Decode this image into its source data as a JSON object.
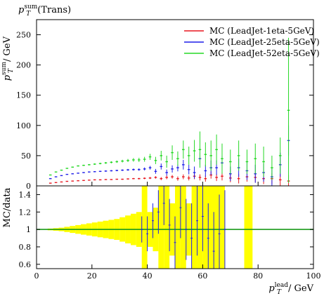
{
  "chart_data": [
    {
      "type": "scatter",
      "panel": "main",
      "title": "p_T^sum (Trans)",
      "ylabel": "p_T^sum / GeV",
      "xlim": [
        0,
        100
      ],
      "ylim": [
        0,
        275
      ],
      "yticks": [
        0,
        50,
        100,
        150,
        200,
        250
      ],
      "legend_position": "top-right",
      "x": [
        5,
        7,
        9,
        11,
        13,
        15,
        17,
        19,
        21,
        23,
        25,
        27,
        29,
        31,
        33,
        35,
        37,
        39,
        41,
        43,
        45,
        47,
        49,
        51,
        53,
        55,
        57,
        59,
        61,
        63,
        65,
        67,
        70,
        73,
        76,
        79,
        82,
        85,
        88,
        91
      ],
      "series": [
        {
          "name": "MC (LeadJet-1eta-5GeV)",
          "color": "#e8171f",
          "values": [
            4.5,
            5.5,
            6.5,
            7.5,
            8,
            8.5,
            9,
            9.5,
            10,
            10,
            10.5,
            10.5,
            11,
            11,
            11.5,
            12,
            12,
            12.5,
            13,
            14,
            12,
            14,
            15,
            12,
            15,
            13,
            16,
            14,
            12,
            18,
            14,
            16,
            13,
            12,
            15,
            14,
            12,
            12,
            10,
            8
          ],
          "errors": [
            0.3,
            0.3,
            0.3,
            0.3,
            0.3,
            0.4,
            0.4,
            0.4,
            0.5,
            0.5,
            0.6,
            0.6,
            0.7,
            0.8,
            0.9,
            1,
            1.2,
            1.4,
            1.6,
            2,
            2.5,
            3,
            3,
            3.5,
            4,
            4,
            5,
            5,
            5,
            6,
            6,
            7,
            7,
            8,
            8,
            8,
            9,
            9,
            10,
            10
          ]
        },
        {
          "name": "MC (LeadJet-25eta-5GeV)",
          "color": "#1f1fe8",
          "values": [
            12,
            15,
            17,
            19,
            20,
            21,
            22,
            23,
            23.5,
            24,
            24.5,
            25,
            25.5,
            26,
            26.5,
            27,
            27,
            28,
            30,
            24,
            32,
            22,
            28,
            30,
            35,
            27,
            22,
            45,
            25,
            30,
            30,
            38,
            20,
            30,
            25,
            20,
            22,
            15,
            35,
            75
          ],
          "errors": [
            0.5,
            0.5,
            0.5,
            0.5,
            0.6,
            0.6,
            0.7,
            0.7,
            0.8,
            0.9,
            1,
            1.1,
            1.2,
            1.3,
            1.5,
            1.7,
            2,
            2.5,
            3,
            4,
            5,
            5,
            6,
            6,
            8,
            8,
            10,
            10,
            10,
            12,
            12,
            12,
            12,
            15,
            15,
            15,
            15,
            15,
            20,
            25
          ]
        },
        {
          "name": "MC (LeadJet-52eta-5GeV)",
          "color": "#25d825",
          "values": [
            18,
            23,
            26,
            29,
            31,
            33,
            34,
            35,
            36,
            37,
            38,
            39,
            40,
            41,
            42,
            43,
            43,
            44,
            48,
            42,
            50,
            40,
            55,
            45,
            60,
            50,
            58,
            60,
            52,
            50,
            60,
            45,
            40,
            50,
            40,
            45,
            40,
            30,
            50,
            125
          ],
          "errors": [
            0.6,
            0.6,
            0.7,
            0.7,
            0.8,
            0.9,
            1,
            1.1,
            1.2,
            1.3,
            1.5,
            1.7,
            2,
            2.2,
            2.5,
            3,
            3.5,
            4,
            5,
            6,
            8,
            10,
            12,
            12,
            15,
            15,
            18,
            30,
            20,
            25,
            25,
            25,
            20,
            25,
            20,
            25,
            25,
            20,
            30,
            120
          ]
        }
      ]
    },
    {
      "type": "area",
      "panel": "ratio",
      "ylabel": "MC/data",
      "xlabel": "p_T^lead / GeV",
      "xlim": [
        0,
        100
      ],
      "ylim": [
        0.55,
        1.5
      ],
      "xticks": [
        0,
        20,
        40,
        60,
        80,
        100
      ],
      "yticks": [
        0.6,
        0.8,
        1,
        1.2,
        1.4
      ],
      "reference_line": 1,
      "x": [
        5,
        7,
        9,
        11,
        13,
        15,
        17,
        19,
        21,
        23,
        25,
        27,
        29,
        31,
        33,
        35,
        37,
        39,
        41,
        43,
        45,
        47,
        49,
        51,
        53,
        55,
        57,
        59,
        61,
        63,
        65,
        67,
        70,
        73,
        76,
        79,
        82,
        85,
        88,
        91
      ],
      "band_halfwidth": [
        0.01,
        0.015,
        0.02,
        0.03,
        0.04,
        0.05,
        0.06,
        0.07,
        0.08,
        0.09,
        0.1,
        0.11,
        0.12,
        0.14,
        0.16,
        0.18,
        0.2,
        0.5,
        0.2,
        0.25,
        0.5,
        0.5,
        0.3,
        0.5,
        0.5,
        0.3,
        0.5,
        0.5,
        0.5,
        0.5,
        0.5,
        0.5,
        0,
        0,
        0.5,
        0,
        0,
        0,
        0,
        0
      ],
      "points_x": [
        38,
        40,
        42,
        44,
        46,
        48,
        50,
        52,
        54,
        56,
        58,
        60,
        62,
        64,
        66,
        68
      ],
      "points_y": [
        1.0,
        0.95,
        1.1,
        1.2,
        1.3,
        1.05,
        0.85,
        1.25,
        1.0,
        0.9,
        1.1,
        1.15,
        0.9,
        0.75,
        0.95,
        1.0
      ],
      "points_err": [
        0.15,
        0.2,
        0.2,
        0.25,
        0.25,
        0.3,
        0.3,
        0.35,
        0.35,
        0.4,
        0.4,
        0.4,
        0.4,
        0.45,
        0.45,
        0.45
      ],
      "colors": {
        "band": "#ffff00",
        "line": "#1a9a1a",
        "points": "#1f1fe8"
      }
    }
  ]
}
